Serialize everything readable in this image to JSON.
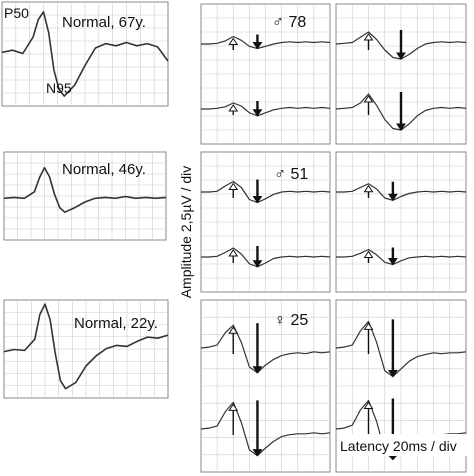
{
  "figure": {
    "y_axis_label": "Amplitude 2,5µV / div",
    "x_axis_label": "Latency 20ms / div",
    "colors": {
      "trace": "#333333",
      "grid": "#cccccc",
      "frame": "#888888",
      "text": "#111111"
    }
  },
  "left_panels": [
    {
      "label": "Normal,  67y.",
      "peak_labels": [
        "P50",
        "N95"
      ]
    },
    {
      "label": "Normal,  46y."
    },
    {
      "label": "Normal,  22y."
    }
  ],
  "right_rows": [
    {
      "label": "♂ 78"
    },
    {
      "label": "♂ 51"
    },
    {
      "label": "♀ 25"
    }
  ],
  "chart_data": [
    {
      "type": "line",
      "title": "Normal,  67y.",
      "x": [
        0,
        10,
        20,
        30,
        35,
        40,
        45,
        50,
        55,
        60,
        70,
        80,
        90,
        100,
        110,
        120,
        130,
        140,
        150,
        160
      ],
      "series": [
        {
          "values": [
            0.4,
            0.6,
            0.3,
            1.8,
            3.4,
            4.1,
            2.2,
            -1.2,
            -3.0,
            -3.6,
            -2.6,
            -0.8,
            0.8,
            1.2,
            1.0,
            1.3,
            1.0,
            1.2,
            0.9,
            -0.4
          ]
        }
      ],
      "ylim": [
        -4.5,
        5
      ]
    },
    {
      "type": "line",
      "title": "Normal,  46y.",
      "x": [
        0,
        10,
        20,
        30,
        35,
        40,
        45,
        50,
        55,
        60,
        70,
        80,
        90,
        100,
        110,
        120,
        130,
        140,
        150,
        160
      ],
      "series": [
        {
          "values": [
            0,
            0.1,
            0,
            0.7,
            2.2,
            3.3,
            2.3,
            0.4,
            -1.0,
            -1.5,
            -1.0,
            -0.4,
            0,
            0.1,
            0,
            0.2,
            0,
            0.1,
            0,
            0.1
          ]
        }
      ],
      "ylim": [
        -4.5,
        5
      ]
    },
    {
      "type": "line",
      "title": "Normal,  22y.",
      "x": [
        0,
        10,
        20,
        30,
        35,
        40,
        45,
        50,
        55,
        60,
        70,
        80,
        90,
        100,
        110,
        120,
        130,
        140,
        150,
        160
      ],
      "series": [
        {
          "values": [
            0,
            0.2,
            0.1,
            1.2,
            3.6,
            4.6,
            3.1,
            -0.2,
            -2.8,
            -3.6,
            -3.0,
            -1.4,
            -0.4,
            0.3,
            0.6,
            0.5,
            1.0,
            1.4,
            1.3,
            1.6
          ]
        }
      ],
      "ylim": [
        -4.5,
        5
      ]
    },
    {
      "type": "line",
      "title": "♂ 78",
      "x": [
        0,
        10,
        20,
        30,
        40,
        50,
        60,
        70,
        80,
        90,
        100,
        110,
        120,
        130,
        140,
        150,
        160
      ],
      "series": [
        {
          "values": [
            0,
            0,
            0.1,
            0.4,
            1.0,
            0.5,
            -0.3,
            -0.6,
            -0.3,
            0,
            0.2,
            0.3,
            0.2,
            0.3,
            0.2,
            0.3,
            0.2
          ]
        },
        {
          "values": [
            0,
            0,
            0.1,
            0.3,
            0.8,
            0.4,
            -0.5,
            -0.9,
            -0.5,
            -0.1,
            0.1,
            0.2,
            0.1,
            0.2,
            0.1,
            0.2,
            0.1
          ]
        },
        {
          "values": [
            0,
            0.1,
            0.2,
            0.9,
            1.6,
            0.6,
            -0.8,
            -1.8,
            -2.0,
            -1.4,
            -0.6,
            0,
            0.2,
            0.3,
            0.2,
            0.3,
            0.2
          ]
        },
        {
          "values": [
            0,
            0.1,
            0.2,
            0.8,
            2.0,
            0.5,
            -1.4,
            -2.6,
            -2.8,
            -2.0,
            -0.9,
            -0.2,
            0.1,
            0.2,
            0.1,
            0.2,
            0.1
          ]
        }
      ],
      "ylim": [
        -4,
        4
      ]
    },
    {
      "type": "line",
      "title": "♂ 51",
      "x": [
        0,
        10,
        20,
        30,
        40,
        50,
        60,
        70,
        80,
        90,
        100,
        110,
        120,
        130,
        140,
        150,
        160
      ],
      "series": [
        {
          "values": [
            0,
            0,
            0.1,
            0.8,
            1.4,
            0.6,
            -1.0,
            -1.4,
            -0.9,
            -0.3,
            0,
            0.1,
            0,
            0.1,
            0,
            0.1,
            0
          ]
        },
        {
          "values": [
            0,
            0,
            0.1,
            0.6,
            1.2,
            0.4,
            -0.9,
            -1.3,
            -0.8,
            -0.2,
            0,
            0.1,
            0,
            0.1,
            0,
            0.1,
            0
          ]
        },
        {
          "values": [
            0,
            0,
            0.1,
            0.6,
            1.1,
            0.4,
            -0.8,
            -1.1,
            -0.6,
            -0.2,
            0,
            0.1,
            0,
            0.1,
            0,
            0.1,
            0
          ]
        },
        {
          "values": [
            0,
            0,
            0.1,
            0.5,
            1.0,
            0.3,
            -0.7,
            -1.0,
            -0.5,
            -0.1,
            0,
            0.1,
            0,
            0.1,
            0,
            0.1,
            0
          ]
        }
      ],
      "ylim": [
        -4,
        4
      ]
    },
    {
      "type": "line",
      "title": "♀ 25",
      "x": [
        0,
        10,
        20,
        30,
        40,
        50,
        60,
        70,
        80,
        90,
        100,
        110,
        120,
        130,
        140,
        150,
        160
      ],
      "series": [
        {
          "values": [
            0,
            0.1,
            0.3,
            1.6,
            2.4,
            0.6,
            -2.0,
            -2.6,
            -1.8,
            -1.2,
            -0.8,
            -0.6,
            -0.5,
            -0.6,
            -0.4,
            -0.5,
            -0.4
          ]
        },
        {
          "values": [
            0,
            0.1,
            0.3,
            1.8,
            2.8,
            0.7,
            -2.2,
            -2.8,
            -2.0,
            -1.3,
            -0.8,
            -0.6,
            -0.5,
            -0.5,
            -0.4,
            -0.5,
            -0.4
          ]
        },
        {
          "values": [
            0,
            0.1,
            0.3,
            1.8,
            2.8,
            0.6,
            -2.4,
            -3.0,
            -2.2,
            -1.4,
            -0.9,
            -0.7,
            -0.5,
            -0.6,
            -0.5,
            -0.5,
            -0.4
          ]
        },
        {
          "values": [
            0,
            0.1,
            0.4,
            2.0,
            3.0,
            0.8,
            -2.4,
            -3.2,
            -2.3,
            -1.5,
            -1.0,
            -0.7,
            -0.6,
            -0.6,
            -0.5,
            -0.5,
            -0.4
          ]
        }
      ],
      "ylim": [
        -4,
        4
      ]
    }
  ]
}
